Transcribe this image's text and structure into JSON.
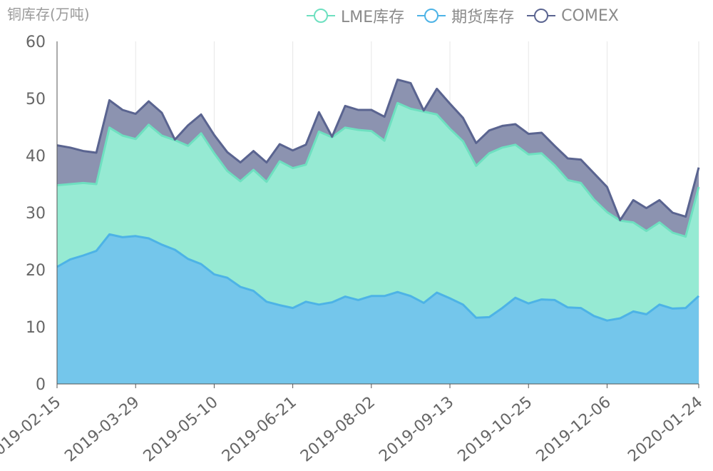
{
  "chart_data": {
    "type": "area",
    "ylabel": "铜库存(万吨)",
    "ylim": [
      0,
      60
    ],
    "yticks": [
      0,
      10,
      20,
      30,
      40,
      50,
      60
    ],
    "x_tick_labels": [
      "2019-02-15",
      "2019-03-29",
      "2019-05-10",
      "2019-06-21",
      "2019-08-02",
      "2019-09-13",
      "2019-10-25",
      "2019-12-06",
      "2020-01-24"
    ],
    "stacked": true,
    "grid": "vertical",
    "legend_position": "top-right",
    "series": [
      {
        "name": "期货库存",
        "color": "#4db3e6",
        "fill": "#74c6eb",
        "values": [
          20.5,
          21.8,
          22.5,
          23.3,
          26.2,
          25.7,
          25.9,
          25.5,
          24.4,
          23.5,
          21.9,
          21.0,
          19.2,
          18.6,
          17.0,
          16.3,
          14.4,
          13.8,
          13.3,
          14.4,
          13.9,
          14.3,
          15.3,
          14.7,
          15.4,
          15.4,
          16.1,
          15.4,
          14.2,
          16.0,
          15.0,
          13.9,
          11.6,
          11.7,
          13.3,
          15.1,
          14.1,
          14.8,
          14.7,
          13.4,
          13.3,
          11.9,
          11.1,
          11.5,
          12.7,
          12.2,
          13.9,
          13.2,
          13.3,
          15.4
        ]
      },
      {
        "name": "LME库存",
        "color": "#6ee0c0",
        "fill": "#96ead3",
        "values": [
          14.3,
          13.2,
          12.7,
          11.7,
          18.7,
          17.8,
          17.0,
          19.9,
          19.1,
          19.2,
          19.8,
          22.9,
          21.2,
          18.7,
          18.5,
          21.2,
          21.0,
          25.2,
          24.5,
          24.0,
          30.3,
          28.9,
          29.6,
          29.8,
          28.9,
          27.2,
          33.1,
          32.8,
          33.5,
          31.2,
          29.7,
          28.6,
          26.6,
          28.7,
          28.1,
          26.8,
          26.1,
          25.6,
          23.6,
          22.3,
          21.9,
          20.4,
          19.0,
          17.1,
          15.6,
          14.6,
          14.4,
          13.3,
          12.5,
          19.1
        ]
      },
      {
        "name": "COMEX",
        "color": "#5a6490",
        "fill": "#8c93b0",
        "values": [
          7.0,
          6.4,
          5.6,
          5.5,
          4.8,
          4.5,
          4.4,
          4.1,
          4.0,
          0.1,
          3.6,
          3.3,
          3.2,
          3.3,
          3.3,
          3.3,
          3.4,
          3.0,
          3.1,
          3.5,
          3.4,
          0.1,
          3.8,
          3.5,
          3.7,
          4.2,
          4.1,
          4.5,
          0.2,
          4.5,
          4.4,
          4.1,
          4.0,
          4.0,
          3.8,
          3.6,
          3.6,
          3.6,
          3.4,
          3.8,
          4.1,
          4.6,
          4.4,
          0.1,
          3.9,
          4.0,
          3.9,
          3.5,
          3.5,
          3.4
        ]
      }
    ]
  }
}
